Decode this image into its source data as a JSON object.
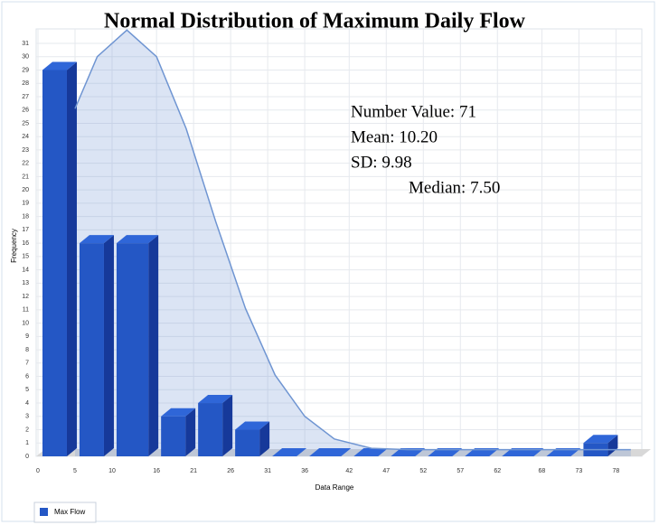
{
  "chart_data": {
    "type": "histogram",
    "title": "Normal Distribution of Maximum Daily Flow",
    "annotations": [
      "Number Value: 71",
      "Mean: 10.20",
      "SD: 9.98",
      "Median: 7.50"
    ],
    "x_label": "Data Range",
    "y_label": "Frequency",
    "series_name": "Max Flow",
    "color": "#2457c5",
    "bins": [
      0,
      5,
      10,
      16,
      21,
      26,
      31,
      36,
      42,
      47,
      52,
      57,
      62,
      68,
      73,
      78
    ],
    "counts": [
      29,
      16,
      16,
      3,
      4,
      2,
      0,
      0,
      0,
      0,
      0,
      0,
      0,
      0,
      1
    ],
    "curve": {
      "color": "#6f95d2",
      "x": [
        5,
        8,
        12,
        16,
        20,
        24,
        28,
        32,
        36,
        40,
        45,
        50,
        55,
        60,
        70,
        80
      ],
      "values": [
        26.1,
        30.0,
        32,
        30.0,
        24.6,
        17.6,
        11.1,
        6.1,
        3.0,
        1.3,
        0.6,
        0.5,
        0.5,
        0.5,
        0.5,
        0.5
      ]
    },
    "xlim": [
      0,
      81
    ],
    "ylim": [
      0,
      31
    ],
    "xticks": [
      0,
      5,
      10,
      16,
      21,
      26,
      31,
      36,
      42,
      47,
      52,
      57,
      62,
      68,
      73,
      78
    ],
    "yticks": [
      0,
      1,
      2,
      3,
      4,
      5,
      6,
      7,
      8,
      9,
      10,
      11,
      12,
      13,
      14,
      15,
      16,
      17,
      18,
      19,
      20,
      21,
      22,
      23,
      24,
      25,
      26,
      27,
      28,
      29,
      30,
      31
    ],
    "grid": true,
    "legend": "bottom-left"
  }
}
